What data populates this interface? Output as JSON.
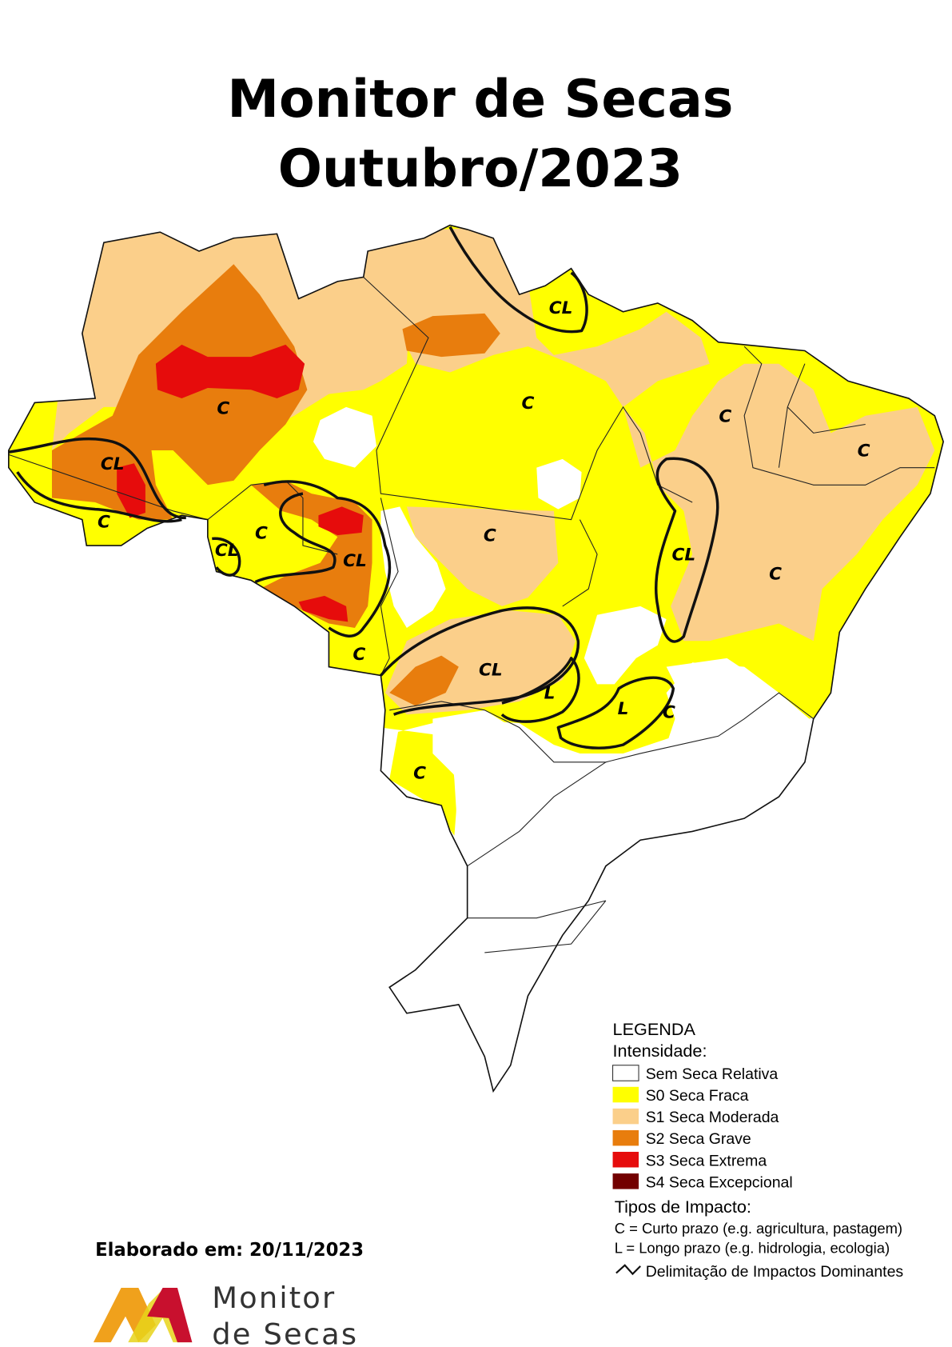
{
  "title": {
    "line1": "Monitor de Secas",
    "line2": "Outubro/2023"
  },
  "map": {
    "labels": [
      "C",
      "CL",
      "C",
      "CL",
      "C",
      "C",
      "C",
      "CL",
      "C",
      "CL",
      "C",
      "CL",
      "C",
      "C",
      "CL",
      "L",
      "L",
      "C",
      "C"
    ]
  },
  "legend": {
    "title": "LEGENDA",
    "intensity_title": "Intensidade:",
    "items": [
      "Sem Seca Relativa",
      "S0 Seca Fraca",
      "S1 Seca Moderada",
      "S2 Seca Grave",
      "S3 Seca Extrema",
      "S4 Seca Excepcional"
    ],
    "impact_title": "Tipos de Impacto:",
    "impact_items": [
      "C = Curto prazo (e.g. agricultura, pastagem)",
      "L = Longo prazo (e.g. hidrologia, ecologia)"
    ],
    "delimitation": "Delimitação de Impactos Dominantes"
  },
  "footer": {
    "date": "Elaborado em: 20/11/2023",
    "logo_line1": "Monitor",
    "logo_line2": "de Secas"
  }
}
